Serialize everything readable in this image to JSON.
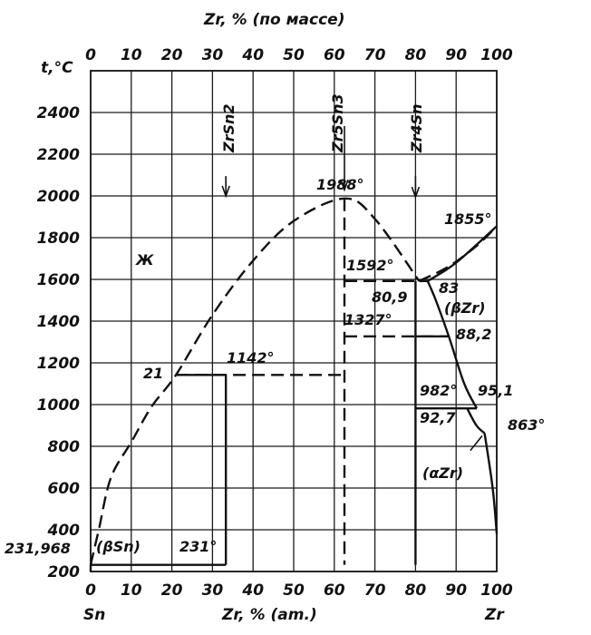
{
  "chart": {
    "top_axis_label": "Zr, % (по массе)",
    "bottom_axis_label": "Zr, % (am.)",
    "y_axis_label": "t,°C",
    "left_end_label": "Sn",
    "right_end_label": "Zr",
    "x_ticks": [
      "0",
      "10",
      "20",
      "30",
      "40",
      "50",
      "60",
      "70",
      "80",
      "90",
      "100"
    ],
    "top_ticks": [
      "0",
      "10",
      "20",
      "30",
      "40",
      "50",
      "60",
      "70",
      "80",
      "90",
      "100"
    ],
    "y_ticks": [
      "200",
      "400",
      "600",
      "800",
      "1000",
      "1200",
      "1400",
      "1600",
      "1800",
      "2000",
      "2200",
      "2400"
    ],
    "compounds": [
      {
        "label": "ZrSn2",
        "x": 33.3
      },
      {
        "label": "Zr5Sn3",
        "x": 62.5
      },
      {
        "label": "Zr4Sn",
        "x": 80
      }
    ],
    "annotations": {
      "t1988": "1988°",
      "t1855": "1855°",
      "t1592": "1592°",
      "t1327": "1327°",
      "t1142": "1142°",
      "t982": "982°",
      "t863": "863°",
      "t231": "231°",
      "t231968": "231,968",
      "c21": "21",
      "c809": "80,9",
      "c83": "83",
      "c882": "88,2",
      "c951": "95,1",
      "c927": "92,7",
      "bZr": "(βZr)",
      "aZr": "(αZr)",
      "bSn": "(βSn)",
      "liquid": "Ж"
    }
  },
  "chart_data": {
    "type": "phase-diagram",
    "xlabel": "Zr, % (am.)",
    "x2label": "Zr, % (по массе)",
    "ylabel": "t,°C",
    "xlim": [
      0,
      100
    ],
    "ylim": [
      200,
      2600
    ],
    "liquidus": [
      [
        0,
        232
      ],
      [
        2,
        400
      ],
      [
        5,
        650
      ],
      [
        10,
        820
      ],
      [
        15,
        990
      ],
      [
        21,
        1142
      ],
      [
        30,
        1430
      ],
      [
        40,
        1690
      ],
      [
        50,
        1880
      ],
      [
        62.5,
        1988
      ],
      [
        70,
        1890
      ],
      [
        80.9,
        1592
      ]
    ],
    "zr_liquidus": [
      [
        80.9,
        1592
      ],
      [
        88,
        1660
      ],
      [
        95,
        1760
      ],
      [
        100,
        1855
      ]
    ],
    "zr_solidus": [
      [
        83,
        1592
      ],
      [
        90,
        1680
      ],
      [
        100,
        1855
      ]
    ],
    "beta_zr_boundary": [
      [
        83,
        1592
      ],
      [
        85,
        1500
      ],
      [
        88.2,
        1327
      ],
      [
        92,
        1100
      ],
      [
        95.1,
        982
      ]
    ],
    "alpha_boundary": [
      [
        92.7,
        982
      ],
      [
        95,
        900
      ],
      [
        97,
        863
      ]
    ],
    "alpha_zr_boundary": [
      [
        97,
        863
      ],
      [
        99,
        600
      ],
      [
        100,
        380
      ]
    ],
    "isotherms": [
      {
        "t": 1988,
        "label": "1988°"
      },
      {
        "t": 1855,
        "label": "1855°"
      },
      {
        "t": 1592,
        "label": "1592°"
      },
      {
        "t": 1327,
        "label": "1327°"
      },
      {
        "t": 1142,
        "label": "1142°"
      },
      {
        "t": 982,
        "label": "982°"
      },
      {
        "t": 863,
        "label": "863°"
      },
      {
        "t": 231,
        "label": "231°"
      },
      {
        "t": 231.968,
        "label": "231,968"
      }
    ]
  }
}
